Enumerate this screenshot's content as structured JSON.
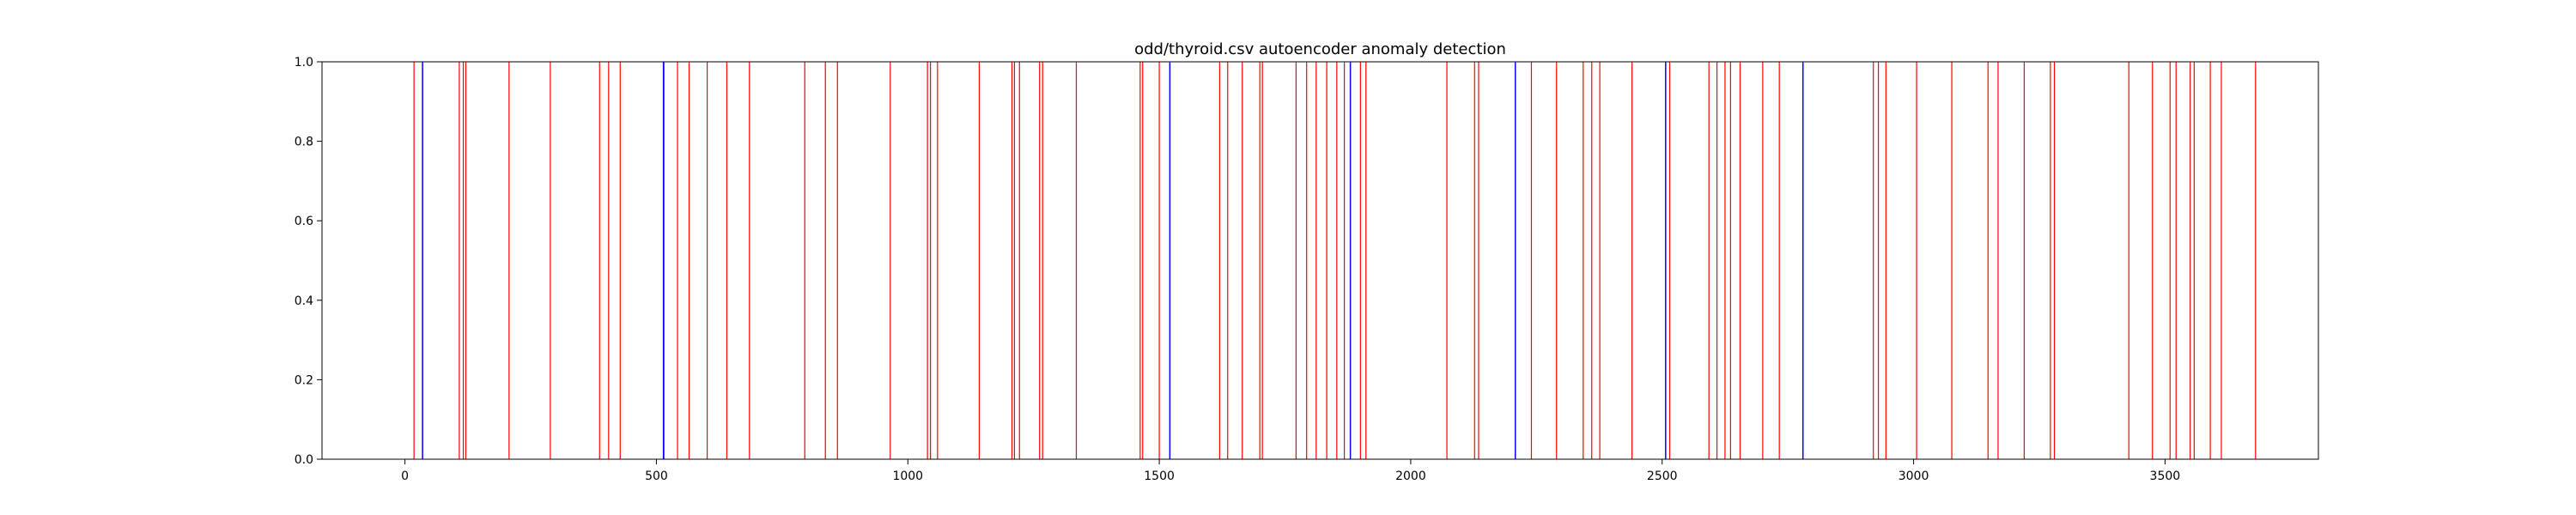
{
  "chart_data": {
    "type": "event-lines",
    "title": "odd/thyroid.csv autoencoder anomaly detection",
    "xlabel": "",
    "ylabel": "",
    "xlim": [
      -165,
      3805
    ],
    "ylim": [
      0,
      1
    ],
    "x_ticks": [
      0,
      500,
      1000,
      1500,
      2000,
      2500,
      3000,
      3500
    ],
    "x_tick_labels": [
      "0",
      "500",
      "1000",
      "1500",
      "2000",
      "2500",
      "3000",
      "3500"
    ],
    "y_ticks": [
      0.0,
      0.2,
      0.4,
      0.6,
      0.8,
      1.0
    ],
    "y_tick_labels": [
      "0.0",
      "0.2",
      "0.4",
      "0.6",
      "0.8",
      "1.0"
    ],
    "grid": false,
    "legend": false,
    "series": [
      {
        "color": "#ff0000",
        "x": [
          18,
          108,
          116,
          121,
          207,
          289,
          387,
          405,
          428,
          515,
          542,
          565,
          601,
          640,
          685,
          795,
          836,
          860,
          965,
          1039,
          1045,
          1059,
          1142,
          1207,
          1212,
          1222,
          1262,
          1268,
          1335,
          1462,
          1467,
          1500,
          1620,
          1636,
          1665,
          1700,
          1705,
          1772,
          1793,
          1812,
          1833,
          1853,
          1868,
          1900,
          1911,
          2072,
          2127,
          2135,
          2240,
          2290,
          2343,
          2360,
          2376,
          2440,
          2515,
          2593,
          2609,
          2625,
          2636,
          2655,
          2700,
          2733,
          2920,
          2930,
          2945,
          3006,
          3076,
          3148,
          3168,
          3220,
          3272,
          3280,
          3428,
          3475,
          3510,
          3522,
          3550,
          3558,
          3590,
          3612,
          3680
        ]
      },
      {
        "color": "#0000ff",
        "x": [
          35,
          514,
          1521,
          1880,
          2208,
          2507,
          2780
        ]
      }
    ]
  }
}
